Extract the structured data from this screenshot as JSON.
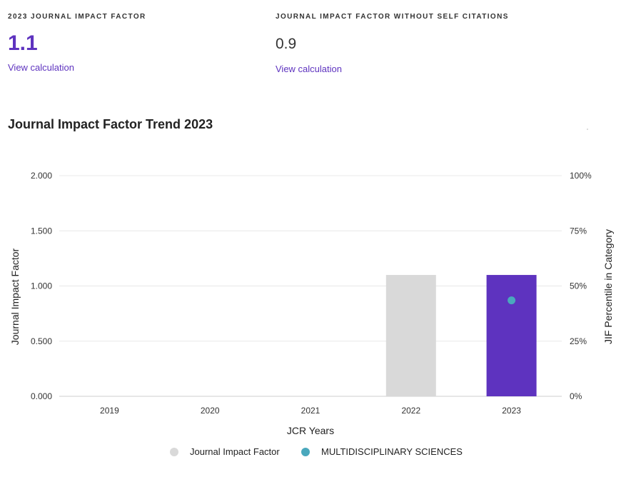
{
  "metrics": {
    "jif": {
      "label": "2023 JOURNAL IMPACT FACTOR",
      "value": "1.1",
      "link": "View calculation"
    },
    "jif_no_self": {
      "label": "JOURNAL IMPACT FACTOR WITHOUT SELF CITATIONS",
      "value": "0.9",
      "link": "View calculation"
    }
  },
  "chart_title": "Journal Impact Factor Trend 2023",
  "colors": {
    "bar_default": "#d9d9d9",
    "bar_current": "#5e33bf",
    "percentile_dot": "#4aa8bd",
    "accent": "#5e33bf"
  },
  "chart_data": {
    "type": "bar",
    "categories": [
      "2019",
      "2020",
      "2021",
      "2022",
      "2023"
    ],
    "series": [
      {
        "name": "Journal Impact Factor",
        "values": [
          null,
          null,
          null,
          1.1,
          1.1
        ]
      },
      {
        "name": "MULTIDISCIPLINARY SCIENCES",
        "values": [
          null,
          null,
          null,
          null,
          43.5
        ]
      }
    ],
    "xlabel": "JCR Years",
    "ylabel": "Journal Impact Factor",
    "y2label": "JIF Percentile in Category",
    "ylim": [
      0,
      2
    ],
    "y2lim": [
      0,
      100
    ],
    "yticks": [
      "0.000",
      "0.500",
      "1.000",
      "1.500",
      "2.000"
    ],
    "y2ticks": [
      "0%",
      "25%",
      "50%",
      "75%",
      "100%"
    ],
    "grid": true,
    "legend": "bottom-center"
  }
}
